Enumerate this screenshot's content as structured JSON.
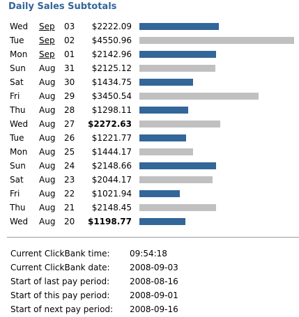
{
  "title": "Daily Sales Subtotals",
  "rows": [
    {
      "day": "Wed",
      "month": "Sep",
      "date": "03",
      "amount": 2222.09,
      "amount_label": "$2222.09",
      "bold": false,
      "color": "#336699"
    },
    {
      "day": "Tue",
      "month": "Sep",
      "date": "02",
      "amount": 4550.96,
      "amount_label": "$4550.96",
      "bold": false,
      "color": "#c0c0c0"
    },
    {
      "day": "Mon",
      "month": "Sep",
      "date": "01",
      "amount": 2142.96,
      "amount_label": "$2142.96",
      "bold": false,
      "color": "#336699"
    },
    {
      "day": "Sun",
      "month": "Aug",
      "date": "31",
      "amount": 2125.12,
      "amount_label": "$2125.12",
      "bold": false,
      "color": "#c0c0c0"
    },
    {
      "day": "Sat",
      "month": "Aug",
      "date": "30",
      "amount": 1434.75,
      "amount_label": "$1434.75",
      "bold": false,
      "color": "#336699"
    },
    {
      "day": "Fri",
      "month": "Aug",
      "date": "29",
      "amount": 3450.54,
      "amount_label": "$3450.54",
      "bold": false,
      "color": "#c0c0c0"
    },
    {
      "day": "Thu",
      "month": "Aug",
      "date": "28",
      "amount": 1298.11,
      "amount_label": "$1298.11",
      "bold": false,
      "color": "#336699"
    },
    {
      "day": "Wed",
      "month": "Aug",
      "date": "27",
      "amount": 2272.63,
      "amount_label": "$2272.63",
      "bold": true,
      "color": "#c0c0c0"
    },
    {
      "day": "Tue",
      "month": "Aug",
      "date": "26",
      "amount": 1221.77,
      "amount_label": "$1221.77",
      "bold": false,
      "color": "#336699"
    },
    {
      "day": "Mon",
      "month": "Aug",
      "date": "25",
      "amount": 1444.17,
      "amount_label": "$1444.17",
      "bold": false,
      "color": "#c0c0c0"
    },
    {
      "day": "Sun",
      "month": "Aug",
      "date": "24",
      "amount": 2148.66,
      "amount_label": "$2148.66",
      "bold": false,
      "color": "#336699"
    },
    {
      "day": "Sat",
      "month": "Aug",
      "date": "23",
      "amount": 2044.17,
      "amount_label": "$2044.17",
      "bold": false,
      "color": "#c0c0c0"
    },
    {
      "day": "Fri",
      "month": "Aug",
      "date": "22",
      "amount": 1021.94,
      "amount_label": "$1021.94",
      "bold": false,
      "color": "#336699"
    },
    {
      "day": "Thu",
      "month": "Aug",
      "date": "21",
      "amount": 2148.45,
      "amount_label": "$2148.45",
      "bold": false,
      "color": "#c0c0c0"
    },
    {
      "day": "Wed",
      "month": "Aug",
      "date": "20",
      "amount": 1198.77,
      "amount_label": "$1198.77",
      "bold": true,
      "color": "#336699"
    }
  ],
  "info": [
    {
      "label": "Current ClickBank time:",
      "value": "09:54:18"
    },
    {
      "label": "Current ClickBank date:",
      "value": "2008-09-03"
    },
    {
      "label": "Start of last pay period:",
      "value": "2008-08-16"
    },
    {
      "label": "Start of this pay period:",
      "value": "2008-09-01"
    },
    {
      "label": "Start of next pay period:",
      "value": "2008-09-16"
    }
  ]
}
